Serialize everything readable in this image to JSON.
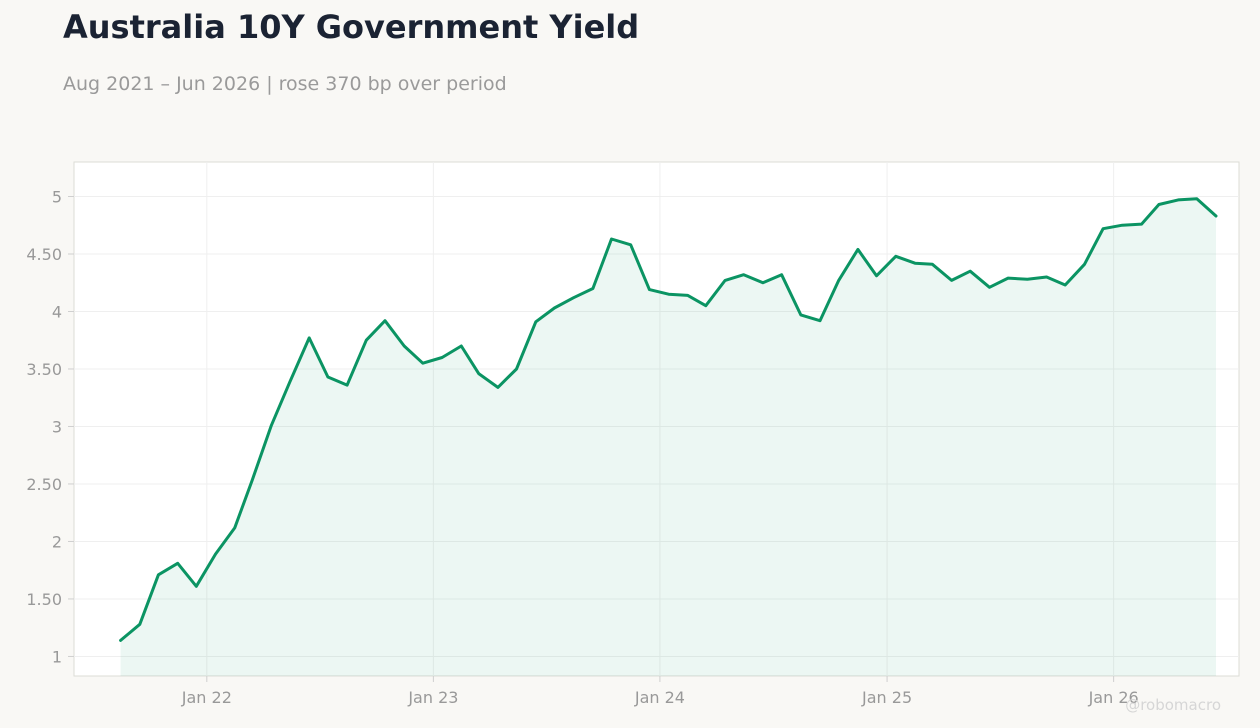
{
  "header": {
    "title": "Australia 10Y Government Yield",
    "subtitle": "Aug 2021 – Jun 2026 | rose 370 bp over period"
  },
  "watermark": "@robomacro",
  "colors": {
    "line": "#0b9463",
    "fill": "#0b9463",
    "background": "#f9f8f5",
    "plot_background": "#ffffff",
    "grid": "#efefef",
    "axis_text": "#999999",
    "title": "#1b2333"
  },
  "chart_data": {
    "type": "area",
    "title": "Australia 10Y Government Yield",
    "subtitle": "Aug 2021 – Jun 2026 | rose 370 bp over period",
    "xlabel": "",
    "ylabel": "",
    "ylim": [
      0.83,
      5.3
    ],
    "xlim": [
      "2021-06-01",
      "2026-07-22"
    ],
    "yticks": [
      1,
      1.5,
      2,
      2.5,
      3,
      3.5,
      4,
      4.5,
      5
    ],
    "ytick_labels": [
      "1",
      "1.50",
      "2",
      "2.50",
      "3",
      "3.50",
      "4",
      "4.50",
      "5"
    ],
    "xticks": [
      "2022-01-01",
      "2023-01-01",
      "2024-01-01",
      "2025-01-01",
      "2026-01-01"
    ],
    "xtick_labels": [
      "Jan 22",
      "Jan 23",
      "Jan 24",
      "Jan 25",
      "Jan 26"
    ],
    "grid": true,
    "legend": "none",
    "series": [
      {
        "x": [
          "2021-08",
          "2021-09",
          "2021-10",
          "2021-11",
          "2021-12",
          "2022-01",
          "2022-02",
          "2022-03",
          "2022-04",
          "2022-05",
          "2022-06",
          "2022-07",
          "2022-08",
          "2022-09",
          "2022-10",
          "2022-11",
          "2022-12",
          "2023-01",
          "2023-02",
          "2023-03",
          "2023-04",
          "2023-05",
          "2023-06",
          "2023-07",
          "2023-08",
          "2023-09",
          "2023-10",
          "2023-11",
          "2023-12",
          "2024-01",
          "2024-02",
          "2024-03",
          "2024-04",
          "2024-05",
          "2024-06",
          "2024-07",
          "2024-08",
          "2024-09",
          "2024-10",
          "2024-11",
          "2024-12",
          "2025-01",
          "2025-02",
          "2025-03",
          "2025-04",
          "2025-05",
          "2025-06",
          "2025-07",
          "2025-08",
          "2025-09",
          "2025-10",
          "2025-11",
          "2025-12",
          "2026-01",
          "2026-02",
          "2026-03",
          "2026-04",
          "2026-05",
          "2026-06"
        ],
        "values": [
          1.14,
          1.28,
          1.71,
          1.81,
          1.61,
          1.89,
          2.12,
          2.53,
          3.01,
          3.39,
          3.77,
          3.43,
          3.36,
          3.75,
          3.92,
          3.7,
          3.55,
          3.6,
          3.7,
          3.46,
          3.34,
          3.5,
          3.91,
          4.03,
          4.12,
          4.2,
          4.63,
          4.58,
          4.19,
          4.15,
          4.14,
          4.05,
          4.27,
          4.32,
          4.25,
          4.32,
          3.97,
          3.92,
          4.27,
          4.54,
          4.31,
          4.48,
          4.42,
          4.41,
          4.27,
          4.35,
          4.21,
          4.29,
          4.28,
          4.3,
          4.23,
          4.41,
          4.72,
          4.75,
          4.76,
          4.93,
          4.97,
          4.98,
          4.83
        ]
      }
    ]
  }
}
